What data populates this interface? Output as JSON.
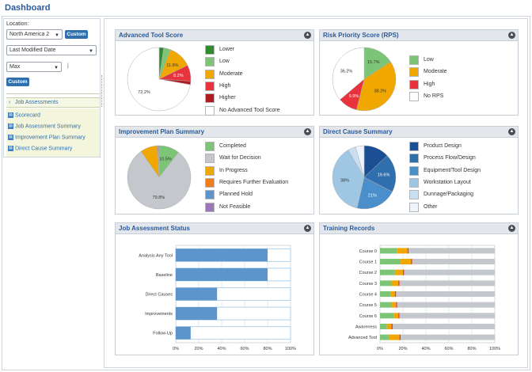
{
  "page": {
    "title": "Dashboard"
  },
  "filters": {
    "location_label": "Location:",
    "location_value": "North America 2",
    "custom_label": "Custom",
    "date_value": "Last Modified Date",
    "range_value": "Max",
    "custom2_label": "Custom"
  },
  "nav": {
    "section": "Job Assessments",
    "items": [
      "Scorecard",
      "Job Assessment Summary",
      "Improvement Plan Summary",
      "Direct Cause Summary"
    ]
  },
  "panels": {
    "advanced_tool_score": {
      "title": "Advanced Tool Score",
      "legend": [
        {
          "label": "Lower",
          "color": "#2e8b2e"
        },
        {
          "label": "Low",
          "color": "#7cc576"
        },
        {
          "label": "Moderate",
          "color": "#f0a800"
        },
        {
          "label": "High",
          "color": "#e8323c"
        },
        {
          "label": "Higher",
          "color": "#b01c22"
        },
        {
          "label": "No Advanced Tool Score",
          "color": "#ffffff"
        }
      ],
      "slice_labels": [
        "11.9%",
        "8.2%",
        "72.2%"
      ]
    },
    "rps": {
      "title": "Risk Priority Score (RPS)",
      "legend": [
        {
          "label": "Low",
          "color": "#7cc576"
        },
        {
          "label": "Moderate",
          "color": "#f0a800"
        },
        {
          "label": "High",
          "color": "#e8323c"
        },
        {
          "label": "No RPS",
          "color": "#ffffff"
        }
      ],
      "slice_labels": [
        "15.7%",
        "38.2%",
        "9.9%",
        "36.2%"
      ]
    },
    "improvement_plan": {
      "title": "Improvement Plan Summary",
      "legend": [
        {
          "label": "Completed",
          "color": "#7cc576"
        },
        {
          "label": "Wait for Decision",
          "color": "#c4c8cc"
        },
        {
          "label": "In Progress",
          "color": "#f0a800"
        },
        {
          "label": "Requires Further Evaluation",
          "color": "#f07c1a"
        },
        {
          "label": "Planned Hold",
          "color": "#5b95cc"
        },
        {
          "label": "Not Feasible",
          "color": "#9a78b8"
        }
      ],
      "slice_labels": [
        "10.5%",
        "79.8%"
      ]
    },
    "direct_cause": {
      "title": "Direct Cause Summary",
      "legend": [
        {
          "label": "Product Design",
          "color": "#1a4f94"
        },
        {
          "label": "Process Flow/Design",
          "color": "#2f6fae"
        },
        {
          "label": "Equipment/Tool Design",
          "color": "#4a8fcc"
        },
        {
          "label": "Workstation Layout",
          "color": "#9fc7e4"
        },
        {
          "label": "Dunnage/Packaging",
          "color": "#c9dff0"
        },
        {
          "label": "Other",
          "color": "#eef4fb"
        }
      ],
      "slice_labels": [
        "19.6%",
        "21%",
        "38%"
      ]
    },
    "job_assessment_status": {
      "title": "Job Assessment Status",
      "categories": [
        "Analysis Any Tool",
        "Baseline",
        "Direct Causes",
        "Improvements",
        "Follow-Up"
      ],
      "values": [
        80,
        80,
        36,
        36,
        13
      ],
      "x_ticks": [
        "0%",
        "20%",
        "40%",
        "60%",
        "80%",
        "100%"
      ]
    },
    "training_records": {
      "title": "Training Records",
      "categories": [
        "Course 0",
        "Course 1",
        "Course 2",
        "Course 3",
        "Course 4",
        "Course 5",
        "Course 6",
        "Awareness",
        "Advanced Tool"
      ],
      "x_ticks": [
        "0%",
        "20%",
        "40%",
        "60%",
        "80%",
        "100%"
      ]
    }
  },
  "chart_data": [
    {
      "type": "pie",
      "categories": [
        "Lower",
        "Low",
        "Moderate",
        "High",
        "Higher",
        "No Advanced Tool Score"
      ],
      "values": [
        2.3,
        3.6,
        11.9,
        8.2,
        1.8,
        72.2
      ],
      "colors": [
        "#2e8b2e",
        "#7cc576",
        "#f0a800",
        "#e8323c",
        "#b01c22",
        "#ffffff"
      ],
      "legend": "right"
    },
    {
      "type": "pie",
      "categories": [
        "Low",
        "Moderate",
        "High",
        "No RPS"
      ],
      "values": [
        15.7,
        38.2,
        9.9,
        36.2
      ],
      "colors": [
        "#7cc576",
        "#f0a800",
        "#e8323c",
        "#ffffff"
      ],
      "legend": "right"
    },
    {
      "type": "pie",
      "categories": [
        "Completed",
        "Wait for Decision",
        "In Progress",
        "Requires Further Evaluation",
        "Planned Hold",
        "Not Feasible"
      ],
      "values": [
        10.5,
        79.8,
        8.5,
        0.4,
        0.4,
        0.4
      ],
      "colors": [
        "#7cc576",
        "#c4c8cc",
        "#f0a800",
        "#f07c1a",
        "#5b95cc",
        "#9a78b8"
      ],
      "legend": "right"
    },
    {
      "type": "pie",
      "categories": [
        "Product Design",
        "Process Flow/Design",
        "Equipment/Tool Design",
        "Workstation Layout",
        "Dunnage/Packaging",
        "Other"
      ],
      "values": [
        13,
        19.6,
        21,
        38,
        4,
        4.4
      ],
      "colors": [
        "#1a4f94",
        "#2f6fae",
        "#4a8fcc",
        "#9fc7e4",
        "#c9dff0",
        "#eef4fb"
      ],
      "legend": "right"
    },
    {
      "type": "bar",
      "orientation": "horizontal",
      "categories": [
        "Analysis Any Tool",
        "Baseline",
        "Direct Causes",
        "Improvements",
        "Follow-Up"
      ],
      "values": [
        80,
        80,
        36,
        36,
        13
      ],
      "xlim": [
        0,
        100
      ],
      "grid": true
    },
    {
      "type": "bar",
      "orientation": "horizontal",
      "stacked": true,
      "categories": [
        "Course 0",
        "Course 1",
        "Course 2",
        "Course 3",
        "Course 4",
        "Course 5",
        "Course 6",
        "Awareness",
        "Advanced Tool"
      ],
      "series": [
        {
          "values": [
            15,
            18,
            13,
            10,
            9,
            10,
            12,
            6,
            8
          ],
          "color": "#7cc576"
        },
        {
          "values": [
            9,
            9,
            7,
            6,
            4,
            4,
            4,
            4,
            9
          ],
          "color": "#f0a800"
        },
        {
          "values": [
            1,
            1,
            1,
            1,
            1,
            1,
            1,
            1,
            1
          ],
          "color": "#e8323c"
        },
        {
          "values": [
            75,
            72,
            79,
            83,
            86,
            85,
            83,
            89,
            82
          ],
          "color": "#c4c8cc"
        }
      ],
      "xlim": [
        0,
        100
      ],
      "grid": true
    }
  ]
}
